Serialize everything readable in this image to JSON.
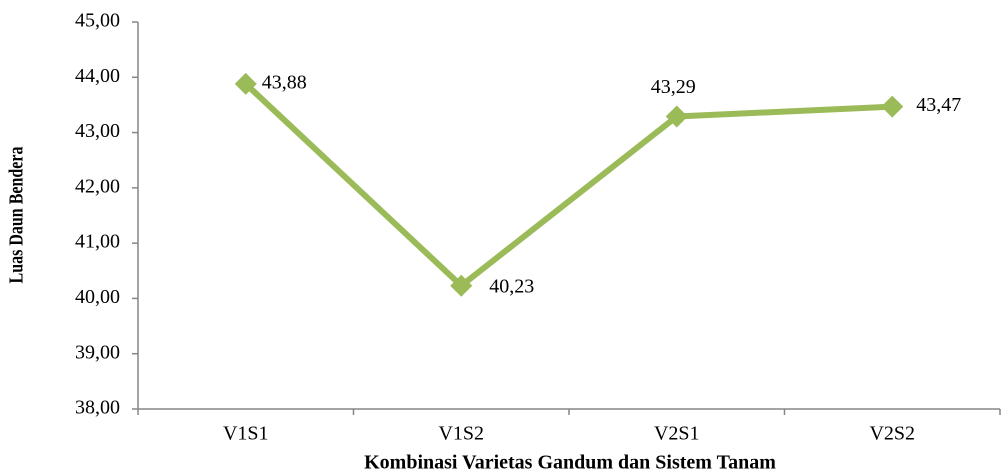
{
  "chart_data": {
    "type": "line",
    "x_label": "Kombinasi Varietas Gandum dan Sistem Tanam",
    "y_label": "Luas Daun Bendera",
    "categories": [
      "V1S1",
      "V1S2",
      "V2S1",
      "V2S2"
    ],
    "series": [
      {
        "color": "#9bbb59",
        "values": [
          43.88,
          40.23,
          43.29,
          43.47
        ],
        "value_labels": [
          "43,88",
          "40,23",
          "43,29",
          "43,47"
        ]
      }
    ],
    "ylim": [
      38,
      45
    ],
    "yticks": [
      {
        "value": 38,
        "label": "38,00"
      },
      {
        "value": 39,
        "label": "39,00"
      },
      {
        "value": 40,
        "label": "40,00"
      },
      {
        "value": 41,
        "label": "41,00"
      },
      {
        "value": 42,
        "label": "42,00"
      },
      {
        "value": 43,
        "label": "43,00"
      },
      {
        "value": 44,
        "label": "44,00"
      },
      {
        "value": 45,
        "label": "45,00"
      }
    ],
    "grid": false
  }
}
